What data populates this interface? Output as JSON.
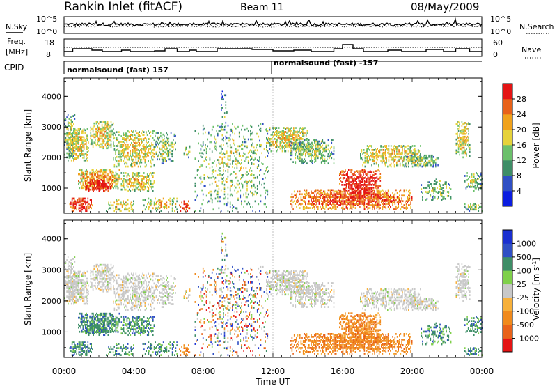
{
  "header": {
    "title": "Rankin Inlet (fitACF)",
    "beam": "Beam 11",
    "date": "08/May/2009"
  },
  "noise_panel": {
    "left_label": "N.Sky",
    "right_label": "N.Search",
    "ticks_left": [
      "10^5",
      "10^0"
    ],
    "ticks_right": [
      "10^5",
      "10^0"
    ]
  },
  "freq_panel": {
    "left_label_1": "Freq.",
    "left_label_2": "[MHz]",
    "right_label": "Nave",
    "ticks_left": [
      "18",
      "8"
    ],
    "ticks_right": [
      "60",
      "0"
    ]
  },
  "cpid_panel": {
    "label": "CPID",
    "segment_1": "normalsound (fast) 157",
    "segment_2": "normalsound (fast) -157"
  },
  "x_axis": {
    "label": "Time UT",
    "ticks": [
      "00:00",
      "04:00",
      "08:00",
      "12:00",
      "16:00",
      "20:00",
      "00:00"
    ]
  },
  "chart_data": [
    {
      "type": "heatmap",
      "name": "power",
      "ylabel": "Slant Range [km]",
      "ylim": [
        180,
        4600
      ],
      "yticks": [
        "4000",
        "3000",
        "2000",
        "1000"
      ],
      "xlim_hours": [
        0,
        24
      ],
      "colorbar_label": "Power [dB]",
      "colorbar_ticks": [
        "28",
        "24",
        "20",
        "16",
        "12",
        "8",
        "4"
      ],
      "colorbar_colors": [
        "#0b1de0",
        "#2f4fc4",
        "#3e8e67",
        "#6bc06b",
        "#e6d23a",
        "#f0a21c",
        "#e8621a",
        "#e41414"
      ]
    },
    {
      "type": "heatmap",
      "name": "velocity",
      "ylabel": "Slant Range [km]",
      "ylim": [
        180,
        4600
      ],
      "yticks": [
        "4000",
        "3000",
        "2000",
        "1000"
      ],
      "xlim_hours": [
        0,
        24
      ],
      "colorbar_label": "Velocity",
      "colorbar_units": "[m s",
      "colorbar_units_exp": "-1",
      "colorbar_units_end": "]",
      "colorbar_ticks": [
        "1000",
        "500",
        "100",
        "25",
        "-25",
        "-100",
        "-500",
        "-1000"
      ],
      "colorbar_colors": [
        "#e41414",
        "#e8621a",
        "#f08a1c",
        "#f7b03a",
        "#c8c8c8",
        "#7fd04a",
        "#3e8e67",
        "#2f4fc4",
        "#1a2fd0"
      ]
    }
  ]
}
